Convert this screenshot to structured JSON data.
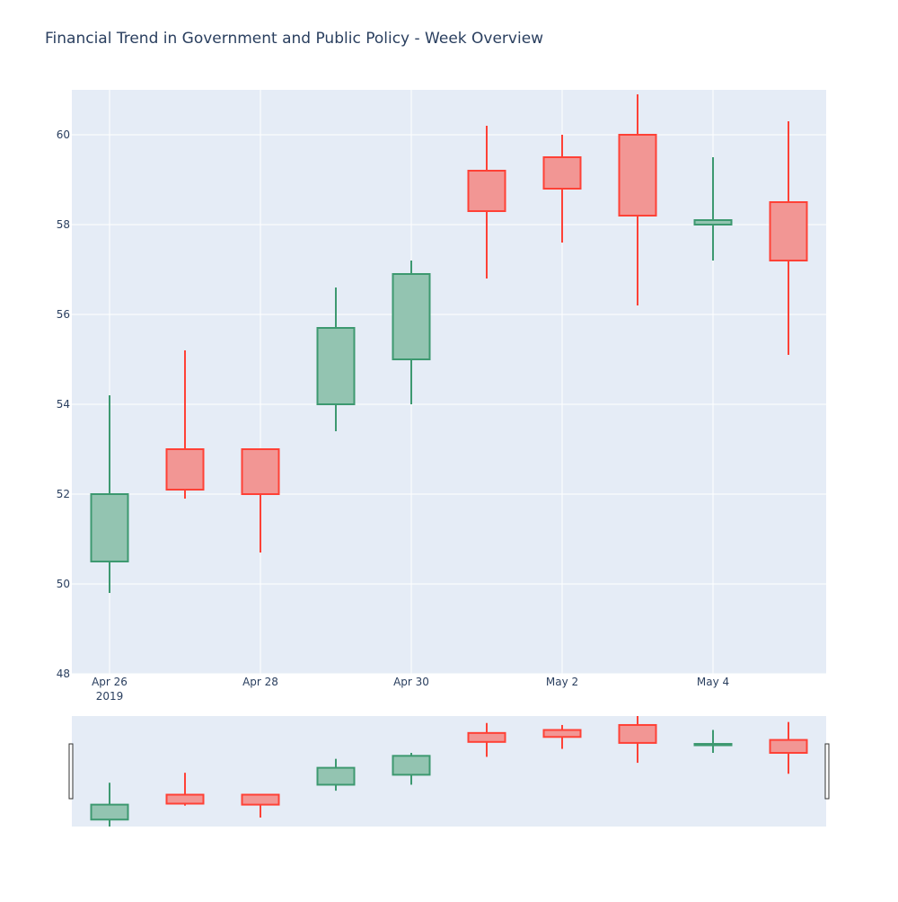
{
  "chart_data": {
    "type": "candlestick",
    "title": "Financial Trend in Government and Public Policy - Week Overview",
    "xlabel": "",
    "ylabel": "",
    "x": [
      "2019-04-26",
      "2019-04-27",
      "2019-04-28",
      "2019-04-29",
      "2019-04-30",
      "2019-05-01",
      "2019-05-02",
      "2019-05-03",
      "2019-05-04",
      "2019-05-05"
    ],
    "open": [
      50.5,
      53.0,
      53.0,
      54.0,
      55.0,
      59.2,
      59.5,
      60.0,
      58.0,
      58.5
    ],
    "high": [
      54.2,
      55.2,
      53.0,
      56.6,
      57.2,
      60.2,
      60.0,
      60.9,
      59.5,
      60.3
    ],
    "low": [
      49.8,
      51.9,
      50.7,
      53.4,
      54.0,
      56.8,
      57.6,
      56.2,
      57.2,
      55.1
    ],
    "close": [
      52.0,
      52.1,
      52.0,
      55.7,
      56.9,
      58.3,
      58.8,
      58.2,
      58.1,
      57.2
    ],
    "ylim": [
      48,
      61
    ],
    "y_ticks": [
      48,
      50,
      52,
      54,
      56,
      58,
      60
    ],
    "x_tick_labels": [
      "Apr 26",
      "Apr 28",
      "Apr 30",
      "May 2",
      "May 4"
    ],
    "x_tick_year": "2019",
    "grid": true,
    "rangeslider": true,
    "colors": {
      "increasing_line": "#3D9970",
      "increasing_fill": "#93C4B1",
      "decreasing_line": "#FF4136",
      "decreasing_fill": "#F29694",
      "plot_bg": "#E5ECF6",
      "grid": "#ffffff",
      "text": "#2a3f5f"
    }
  }
}
